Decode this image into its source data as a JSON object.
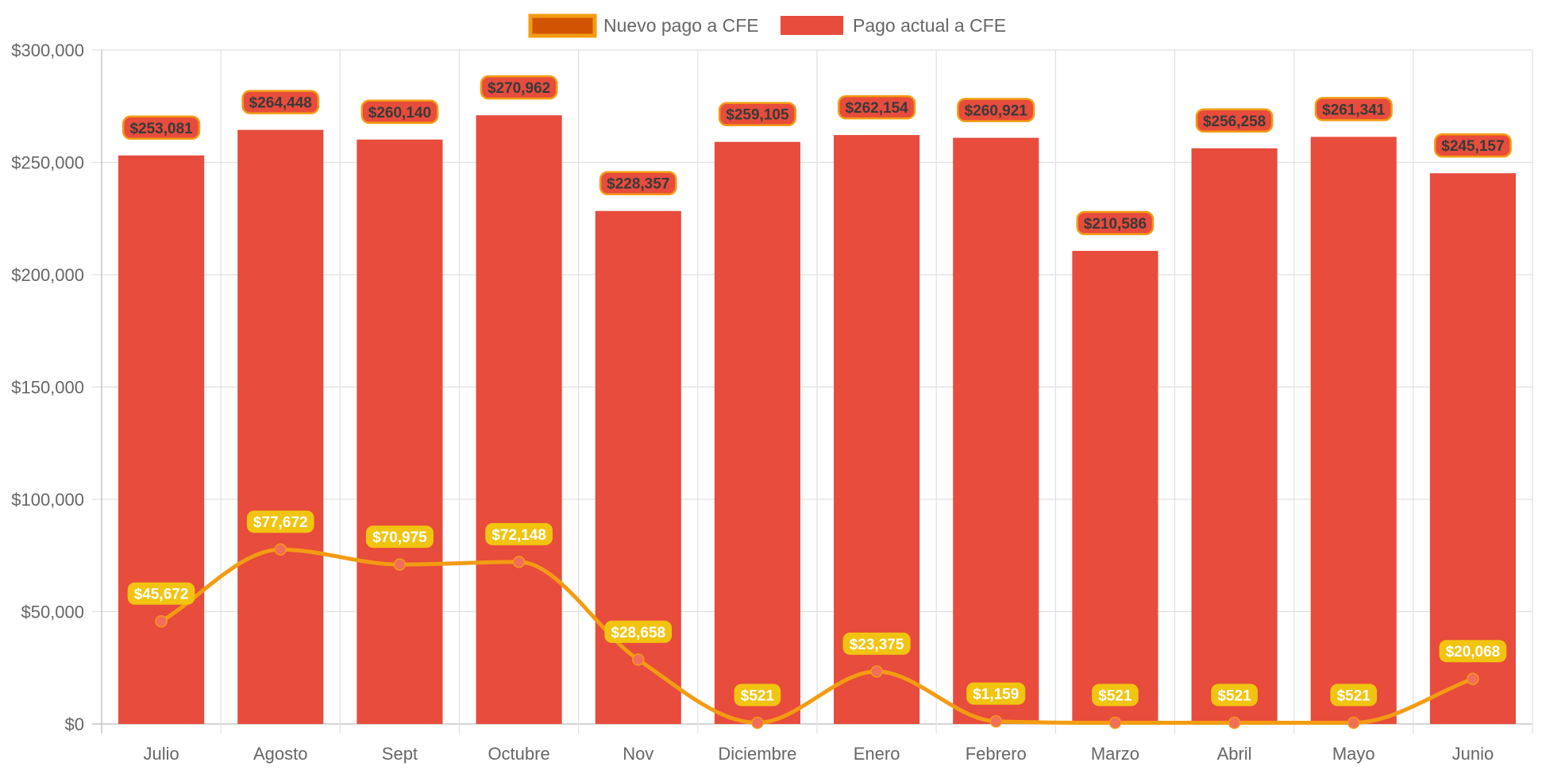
{
  "chart_data": {
    "type": "bar",
    "categories": [
      "Julio",
      "Agosto",
      "Sept",
      "Octubre",
      "Nov",
      "Diciembre",
      "Enero",
      "Febrero",
      "Marzo",
      "Abril",
      "Mayo",
      "Junio"
    ],
    "series": [
      {
        "name": "Nuevo pago a CFE",
        "type": "line",
        "values": [
          45672,
          77672,
          70975,
          72148,
          28658,
          521,
          23375,
          1159,
          521,
          521,
          521,
          20068
        ],
        "labels": [
          "$45,672",
          "$77,672",
          "$70,975",
          "$72,148",
          "$28,658",
          "$521",
          "$23,375",
          "$1,159",
          "$521",
          "$521",
          "$521",
          "$20,068"
        ],
        "color": "#f39c12",
        "point_color": "#f26d5b",
        "label_bg": "#f1c40f"
      },
      {
        "name": "Pago actual a CFE",
        "type": "bar",
        "values": [
          253081,
          264448,
          260140,
          270962,
          228357,
          259105,
          262154,
          260921,
          210586,
          256258,
          261341,
          245157
        ],
        "labels": [
          "$253,081",
          "$264,448",
          "$260,140",
          "$270,962",
          "$228,357",
          "$259,105",
          "$262,154",
          "$260,921",
          "$210,586",
          "$256,258",
          "$261,341",
          "$245,157"
        ],
        "color": "#e74c3c",
        "label_border": "#f39c12"
      }
    ],
    "y_ticks": [
      0,
      50000,
      100000,
      150000,
      200000,
      250000,
      300000
    ],
    "y_tick_labels": [
      "$0",
      "$50,000",
      "$100,000",
      "$150,000",
      "$200,000",
      "$250,000",
      "$300,000"
    ],
    "ylim": [
      0,
      300000
    ],
    "grid": true,
    "legend_position": "top",
    "legend": [
      {
        "label": "Nuevo pago a CFE",
        "fill": "#d35400",
        "border": "#f39c12"
      },
      {
        "label": "Pago actual a CFE",
        "fill": "#e74c3c",
        "border": "#e74c3c"
      }
    ]
  }
}
